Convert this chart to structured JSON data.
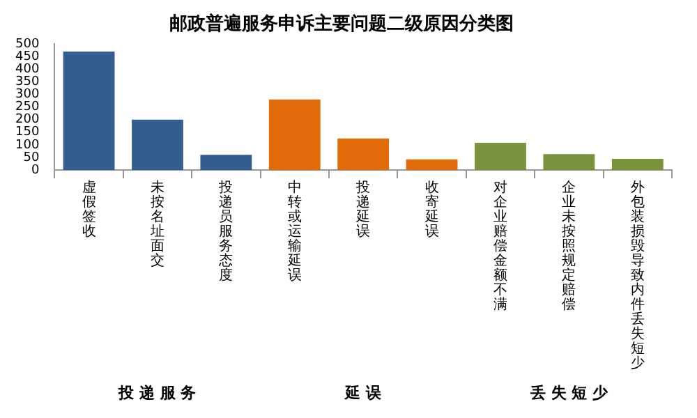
{
  "chart_data": {
    "type": "bar",
    "title": "邮政普遍服务申诉主要问题二级原因分类图",
    "categories": [
      "虚假签收",
      "未按名址面交",
      "投递员服务态度",
      "中转或运输延误",
      "投递延误",
      "收寄延误",
      "对企业赔偿金额不满",
      "企业未按照规定赔偿",
      "外包装损毁导致内件丢失短少"
    ],
    "series": [
      {
        "color": "#335e8f",
        "values": [
          470,
          200,
          60,
          null,
          null,
          null,
          null,
          null,
          null
        ]
      },
      {
        "color": "#e36c0a",
        "values": [
          null,
          null,
          null,
          280,
          125,
          42,
          null,
          null,
          null
        ]
      },
      {
        "color": "#77933c",
        "values": [
          null,
          null,
          null,
          null,
          null,
          null,
          108,
          63,
          44
        ]
      }
    ],
    "annotations": [
      "投递服务",
      "延误",
      "丢失短少"
    ],
    "ylim": [
      0,
      500
    ],
    "yticks": [
      0,
      50,
      100,
      150,
      200,
      250,
      300,
      350,
      400,
      450,
      500
    ],
    "legend": false
  }
}
